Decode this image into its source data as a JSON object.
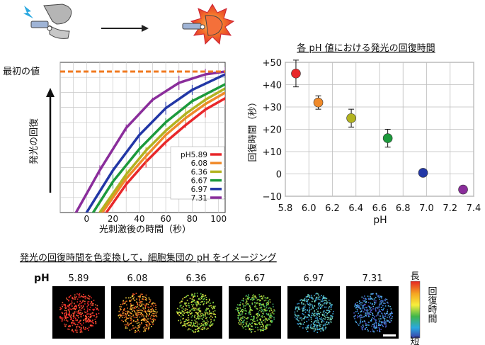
{
  "colors": {
    "series": [
      "#e8272a",
      "#f08a2a",
      "#b2b320",
      "#1c9a3c",
      "#2237a6",
      "#8a2d9b"
    ],
    "initial_line": "#f07a20",
    "gauge": [
      "#e52521",
      "#f5a623",
      "#f7ee3c",
      "#40b64a",
      "#2aa8e0",
      "#3a3fa8"
    ]
  },
  "illustration": {
    "icons": [
      "lightning-icon",
      "gripper-device-icon",
      "arrow-icon",
      "burst-icon",
      "glowing-gripper-icon"
    ]
  },
  "left_chart": {
    "initial_label": "最初の値",
    "y_axis_title": "発光の回復",
    "x_axis_title": "光刺激後の時間（秒）",
    "x_ticks": [
      "0",
      "20",
      "40",
      "60",
      "80",
      "100"
    ],
    "legend": [
      "pH5.89",
      "6.08",
      "6.36",
      "6.67",
      "6.97",
      "7.31"
    ]
  },
  "right_chart": {
    "title": "各 pH 値における発光の回復時間",
    "y_label": "回復時間（秒）",
    "x_label": "pH",
    "x_ticks": [
      "5.8",
      "6.0",
      "6.2",
      "6.4",
      "6.6",
      "6.8",
      "7.0",
      "7.2",
      "7.4"
    ],
    "y_ticks": [
      "+50",
      "+40",
      "+30",
      "+20",
      "+10",
      "0",
      "−10"
    ]
  },
  "imaging": {
    "title": "発光の回復時間を色変換して，細胞集団の pH をイメージング",
    "row_label": "pH",
    "panels": [
      "5.89",
      "6.08",
      "6.36",
      "6.67",
      "6.97",
      "7.31"
    ],
    "colorbar_top": "長",
    "colorbar_label": "回復時間",
    "colorbar_bottom": "短"
  },
  "chart_data": [
    {
      "type": "line",
      "xlabel": "光刺激後の時間（秒）",
      "ylabel": "発光の回復",
      "xlim": [
        -20,
        105
      ],
      "x_ticks": [
        0,
        20,
        40,
        60,
        80,
        100
      ],
      "reference_line": {
        "label": "最初の値",
        "y": 1.0
      },
      "series": [
        {
          "name": "pH5.89",
          "points": [
            [
              15,
              0.0
            ],
            [
              30,
              0.2
            ],
            [
              45,
              0.36
            ],
            [
              60,
              0.5
            ],
            [
              75,
              0.62
            ],
            [
              90,
              0.73
            ],
            [
              105,
              0.81
            ]
          ]
        },
        {
          "name": "6.08",
          "points": [
            [
              12,
              0.0
            ],
            [
              30,
              0.24
            ],
            [
              45,
              0.4
            ],
            [
              60,
              0.55
            ],
            [
              75,
              0.67
            ],
            [
              90,
              0.77
            ],
            [
              105,
              0.85
            ]
          ]
        },
        {
          "name": "6.36",
          "points": [
            [
              10,
              0.0
            ],
            [
              30,
              0.27
            ],
            [
              45,
              0.44
            ],
            [
              60,
              0.58
            ],
            [
              75,
              0.7
            ],
            [
              90,
              0.8
            ],
            [
              105,
              0.88
            ]
          ]
        },
        {
          "name": "6.67",
          "points": [
            [
              5,
              0.0
            ],
            [
              20,
              0.22
            ],
            [
              40,
              0.45
            ],
            [
              60,
              0.64
            ],
            [
              80,
              0.79
            ],
            [
              105,
              0.91
            ]
          ]
        },
        {
          "name": "6.97",
          "points": [
            [
              0,
              0.0
            ],
            [
              20,
              0.3
            ],
            [
              40,
              0.55
            ],
            [
              60,
              0.74
            ],
            [
              80,
              0.87
            ],
            [
              105,
              0.98
            ]
          ]
        },
        {
          "name": "7.31",
          "points": [
            [
              -8,
              0.0
            ],
            [
              10,
              0.3
            ],
            [
              30,
              0.6
            ],
            [
              50,
              0.8
            ],
            [
              70,
              0.92
            ],
            [
              90,
              0.98
            ],
            [
              105,
              1.0
            ]
          ]
        }
      ]
    },
    {
      "type": "scatter",
      "title": "各 pH 値における発光の回復時間",
      "xlabel": "pH",
      "ylabel": "回復時間（秒）",
      "xlim": [
        5.8,
        7.4
      ],
      "ylim": [
        -10,
        50
      ],
      "grid": true,
      "points": [
        {
          "x": 5.89,
          "y": 45,
          "err": 6
        },
        {
          "x": 6.08,
          "y": 32,
          "err": 3
        },
        {
          "x": 6.36,
          "y": 25,
          "err": 4
        },
        {
          "x": 6.67,
          "y": 16,
          "err": 4
        },
        {
          "x": 6.97,
          "y": 0.5,
          "err": 0
        },
        {
          "x": 7.31,
          "y": -7,
          "err": 0
        }
      ]
    }
  ]
}
